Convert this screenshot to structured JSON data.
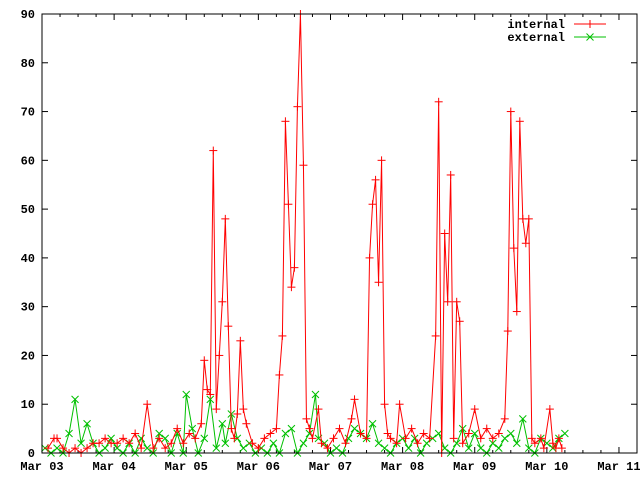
{
  "chart_data": {
    "type": "line",
    "title": "",
    "xlabel": "",
    "ylabel": "",
    "xlim": [
      "Mar 03 00:00",
      "Mar 11 06:00"
    ],
    "ylim": [
      0,
      90
    ],
    "x_ticks": [
      "Mar 03",
      "Mar 04",
      "Mar 05",
      "Mar 06",
      "Mar 07",
      "Mar 08",
      "Mar 09",
      "Mar 10",
      "Mar 11"
    ],
    "y_ticks": [
      "0",
      "10",
      "20",
      "30",
      "40",
      "50",
      "60",
      "70",
      "80",
      "90"
    ],
    "grid": false,
    "legend_position": "top-right",
    "series": [
      {
        "name": "internal",
        "color": "#ff0000",
        "marker": "plus",
        "points": [
          [
            "Mar 03 02:00",
            1
          ],
          [
            "Mar 03 04:00",
            3
          ],
          [
            "Mar 03 05:00",
            3
          ],
          [
            "Mar 03 07:00",
            1
          ],
          [
            "Mar 03 09:00",
            0
          ],
          [
            "Mar 03 11:00",
            1
          ],
          [
            "Mar 03 13:00",
            0
          ],
          [
            "Mar 03 15:00",
            1
          ],
          [
            "Mar 03 17:00",
            2
          ],
          [
            "Mar 03 19:00",
            2
          ],
          [
            "Mar 03 21:00",
            3
          ],
          [
            "Mar 03 23:00",
            2
          ],
          [
            "Mar 04 01:00",
            2
          ],
          [
            "Mar 04 03:00",
            3
          ],
          [
            "Mar 04 05:00",
            2
          ],
          [
            "Mar 04 07:00",
            4
          ],
          [
            "Mar 04 09:00",
            1
          ],
          [
            "Mar 04 11:00",
            10
          ],
          [
            "Mar 04 13:00",
            1
          ],
          [
            "Mar 04 15:00",
            3
          ],
          [
            "Mar 04 17:00",
            1
          ],
          [
            "Mar 04 19:00",
            2
          ],
          [
            "Mar 04 21:00",
            5
          ],
          [
            "Mar 04 23:00",
            2
          ],
          [
            "Mar 05 01:00",
            4
          ],
          [
            "Mar 05 03:00",
            3
          ],
          [
            "Mar 05 05:00",
            6
          ],
          [
            "Mar 05 06:00",
            19
          ],
          [
            "Mar 05 07:00",
            13
          ],
          [
            "Mar 05 08:00",
            12
          ],
          [
            "Mar 05 09:00",
            62
          ],
          [
            "Mar 05 10:00",
            9
          ],
          [
            "Mar 05 11:00",
            20
          ],
          [
            "Mar 05 12:00",
            31
          ],
          [
            "Mar 05 13:00",
            48
          ],
          [
            "Mar 05 14:00",
            26
          ],
          [
            "Mar 05 15:00",
            5
          ],
          [
            "Mar 05 16:00",
            3
          ],
          [
            "Mar 05 17:00",
            8
          ],
          [
            "Mar 05 18:00",
            23
          ],
          [
            "Mar 05 19:00",
            9
          ],
          [
            "Mar 05 20:00",
            6
          ],
          [
            "Mar 05 22:00",
            2
          ],
          [
            "Mar 06 00:00",
            1
          ],
          [
            "Mar 06 02:00",
            3
          ],
          [
            "Mar 06 04:00",
            4
          ],
          [
            "Mar 06 06:00",
            5
          ],
          [
            "Mar 06 07:00",
            16
          ],
          [
            "Mar 06 08:00",
            24
          ],
          [
            "Mar 06 09:00",
            68
          ],
          [
            "Mar 06 10:00",
            51
          ],
          [
            "Mar 06 11:00",
            34
          ],
          [
            "Mar 06 12:00",
            38
          ],
          [
            "Mar 06 13:00",
            71
          ],
          [
            "Mar 06 14:00",
            90
          ],
          [
            "Mar 06 15:00",
            59
          ],
          [
            "Mar 06 16:00",
            7
          ],
          [
            "Mar 06 17:00",
            5
          ],
          [
            "Mar 06 18:00",
            3
          ],
          [
            "Mar 06 20:00",
            9
          ],
          [
            "Mar 06 21:00",
            2
          ],
          [
            "Mar 06 23:00",
            1
          ],
          [
            "Mar 07 01:00",
            3
          ],
          [
            "Mar 07 03:00",
            5
          ],
          [
            "Mar 07 05:00",
            2
          ],
          [
            "Mar 07 07:00",
            7
          ],
          [
            "Mar 07 08:00",
            11
          ],
          [
            "Mar 07 10:00",
            4
          ],
          [
            "Mar 07 12:00",
            3
          ],
          [
            "Mar 07 13:00",
            40
          ],
          [
            "Mar 07 14:00",
            51
          ],
          [
            "Mar 07 15:00",
            56
          ],
          [
            "Mar 07 16:00",
            35
          ],
          [
            "Mar 07 17:00",
            60
          ],
          [
            "Mar 07 18:00",
            10
          ],
          [
            "Mar 07 19:00",
            4
          ],
          [
            "Mar 07 20:00",
            3
          ],
          [
            "Mar 07 22:00",
            2
          ],
          [
            "Mar 07 23:00",
            10
          ],
          [
            "Mar 08 01:00",
            3
          ],
          [
            "Mar 08 03:00",
            5
          ],
          [
            "Mar 08 05:00",
            2
          ],
          [
            "Mar 08 07:00",
            4
          ],
          [
            "Mar 08 09:00",
            3
          ],
          [
            "Mar 08 11:00",
            24
          ],
          [
            "Mar 08 12:00",
            72
          ],
          [
            "Mar 08 13:00",
            0
          ],
          [
            "Mar 08 14:00",
            45
          ],
          [
            "Mar 08 15:00",
            31
          ],
          [
            "Mar 08 16:00",
            57
          ],
          [
            "Mar 08 17:00",
            3
          ],
          [
            "Mar 08 18:00",
            31
          ],
          [
            "Mar 08 19:00",
            27
          ],
          [
            "Mar 08 20:00",
            2
          ],
          [
            "Mar 08 22:00",
            4
          ],
          [
            "Mar 09 00:00",
            9
          ],
          [
            "Mar 09 02:00",
            3
          ],
          [
            "Mar 09 04:00",
            5
          ],
          [
            "Mar 09 06:00",
            3
          ],
          [
            "Mar 09 08:00",
            4
          ],
          [
            "Mar 09 10:00",
            7
          ],
          [
            "Mar 09 11:00",
            25
          ],
          [
            "Mar 09 12:00",
            70
          ],
          [
            "Mar 09 13:00",
            42
          ],
          [
            "Mar 09 14:00",
            29
          ],
          [
            "Mar 09 15:00",
            68
          ],
          [
            "Mar 09 16:00",
            48
          ],
          [
            "Mar 09 17:00",
            43
          ],
          [
            "Mar 09 18:00",
            48
          ],
          [
            "Mar 09 19:00",
            3
          ],
          [
            "Mar 09 20:00",
            2
          ],
          [
            "Mar 09 22:00",
            3
          ],
          [
            "Mar 09 23:00",
            1
          ],
          [
            "Mar 10 01:00",
            9
          ],
          [
            "Mar 10 02:00",
            2
          ],
          [
            "Mar 10 03:00",
            1
          ],
          [
            "Mar 10 04:00",
            3
          ],
          [
            "Mar 10 05:00",
            1
          ]
        ]
      },
      {
        "name": "external",
        "color": "#00c000",
        "marker": "cross",
        "points": [
          [
            "Mar 03 01:00",
            1
          ],
          [
            "Mar 03 03:00",
            0
          ],
          [
            "Mar 03 05:00",
            1
          ],
          [
            "Mar 03 07:00",
            0
          ],
          [
            "Mar 03 09:00",
            4
          ],
          [
            "Mar 03 11:00",
            11
          ],
          [
            "Mar 03 13:00",
            2
          ],
          [
            "Mar 03 15:00",
            6
          ],
          [
            "Mar 03 17:00",
            2
          ],
          [
            "Mar 03 19:00",
            0
          ],
          [
            "Mar 03 21:00",
            1
          ],
          [
            "Mar 03 23:00",
            3
          ],
          [
            "Mar 04 01:00",
            1
          ],
          [
            "Mar 04 03:00",
            0
          ],
          [
            "Mar 04 05:00",
            2
          ],
          [
            "Mar 04 07:00",
            0
          ],
          [
            "Mar 04 09:00",
            3
          ],
          [
            "Mar 04 11:00",
            1
          ],
          [
            "Mar 04 13:00",
            0
          ],
          [
            "Mar 04 15:00",
            4
          ],
          [
            "Mar 04 17:00",
            3
          ],
          [
            "Mar 04 19:00",
            0
          ],
          [
            "Mar 04 21:00",
            4
          ],
          [
            "Mar 04 23:00",
            0
          ],
          [
            "Mar 05 00:00",
            12
          ],
          [
            "Mar 05 02:00",
            5
          ],
          [
            "Mar 05 04:00",
            0
          ],
          [
            "Mar 05 06:00",
            3
          ],
          [
            "Mar 05 08:00",
            11
          ],
          [
            "Mar 05 10:00",
            1
          ],
          [
            "Mar 05 12:00",
            6
          ],
          [
            "Mar 05 13:00",
            2
          ],
          [
            "Mar 05 15:00",
            8
          ],
          [
            "Mar 05 17:00",
            3
          ],
          [
            "Mar 05 19:00",
            1
          ],
          [
            "Mar 05 21:00",
            2
          ],
          [
            "Mar 05 23:00",
            0
          ],
          [
            "Mar 06 01:00",
            1
          ],
          [
            "Mar 06 03:00",
            0
          ],
          [
            "Mar 06 05:00",
            2
          ],
          [
            "Mar 06 07:00",
            0
          ],
          [
            "Mar 06 09:00",
            4
          ],
          [
            "Mar 06 11:00",
            5
          ],
          [
            "Mar 06 13:00",
            0
          ],
          [
            "Mar 06 15:00",
            2
          ],
          [
            "Mar 06 17:00",
            4
          ],
          [
            "Mar 06 19:00",
            12
          ],
          [
            "Mar 06 20:00",
            3
          ],
          [
            "Mar 06 22:00",
            2
          ],
          [
            "Mar 07 00:00",
            0
          ],
          [
            "Mar 07 02:00",
            1
          ],
          [
            "Mar 07 04:00",
            0
          ],
          [
            "Mar 07 06:00",
            3
          ],
          [
            "Mar 07 08:00",
            5
          ],
          [
            "Mar 07 10:00",
            4
          ],
          [
            "Mar 07 12:00",
            3
          ],
          [
            "Mar 07 14:00",
            6
          ],
          [
            "Mar 07 16:00",
            2
          ],
          [
            "Mar 07 18:00",
            1
          ],
          [
            "Mar 07 20:00",
            0
          ],
          [
            "Mar 07 22:00",
            2
          ],
          [
            "Mar 08 00:00",
            3
          ],
          [
            "Mar 08 02:00",
            1
          ],
          [
            "Mar 08 04:00",
            3
          ],
          [
            "Mar 08 06:00",
            0
          ],
          [
            "Mar 08 08:00",
            2
          ],
          [
            "Mar 08 10:00",
            3
          ],
          [
            "Mar 08 12:00",
            4
          ],
          [
            "Mar 08 14:00",
            1
          ],
          [
            "Mar 08 16:00",
            0
          ],
          [
            "Mar 08 18:00",
            2
          ],
          [
            "Mar 08 20:00",
            5
          ],
          [
            "Mar 08 22:00",
            1
          ],
          [
            "Mar 09 00:00",
            4
          ],
          [
            "Mar 09 02:00",
            1
          ],
          [
            "Mar 09 04:00",
            0
          ],
          [
            "Mar 09 06:00",
            2
          ],
          [
            "Mar 09 08:00",
            1
          ],
          [
            "Mar 09 10:00",
            3
          ],
          [
            "Mar 09 12:00",
            4
          ],
          [
            "Mar 09 14:00",
            2
          ],
          [
            "Mar 09 16:00",
            7
          ],
          [
            "Mar 09 18:00",
            1
          ],
          [
            "Mar 09 20:00",
            0
          ],
          [
            "Mar 09 22:00",
            3
          ],
          [
            "Mar 10 00:00",
            2
          ],
          [
            "Mar 10 02:00",
            1
          ],
          [
            "Mar 10 04:00",
            3
          ],
          [
            "Mar 10 06:00",
            4
          ]
        ]
      }
    ]
  }
}
